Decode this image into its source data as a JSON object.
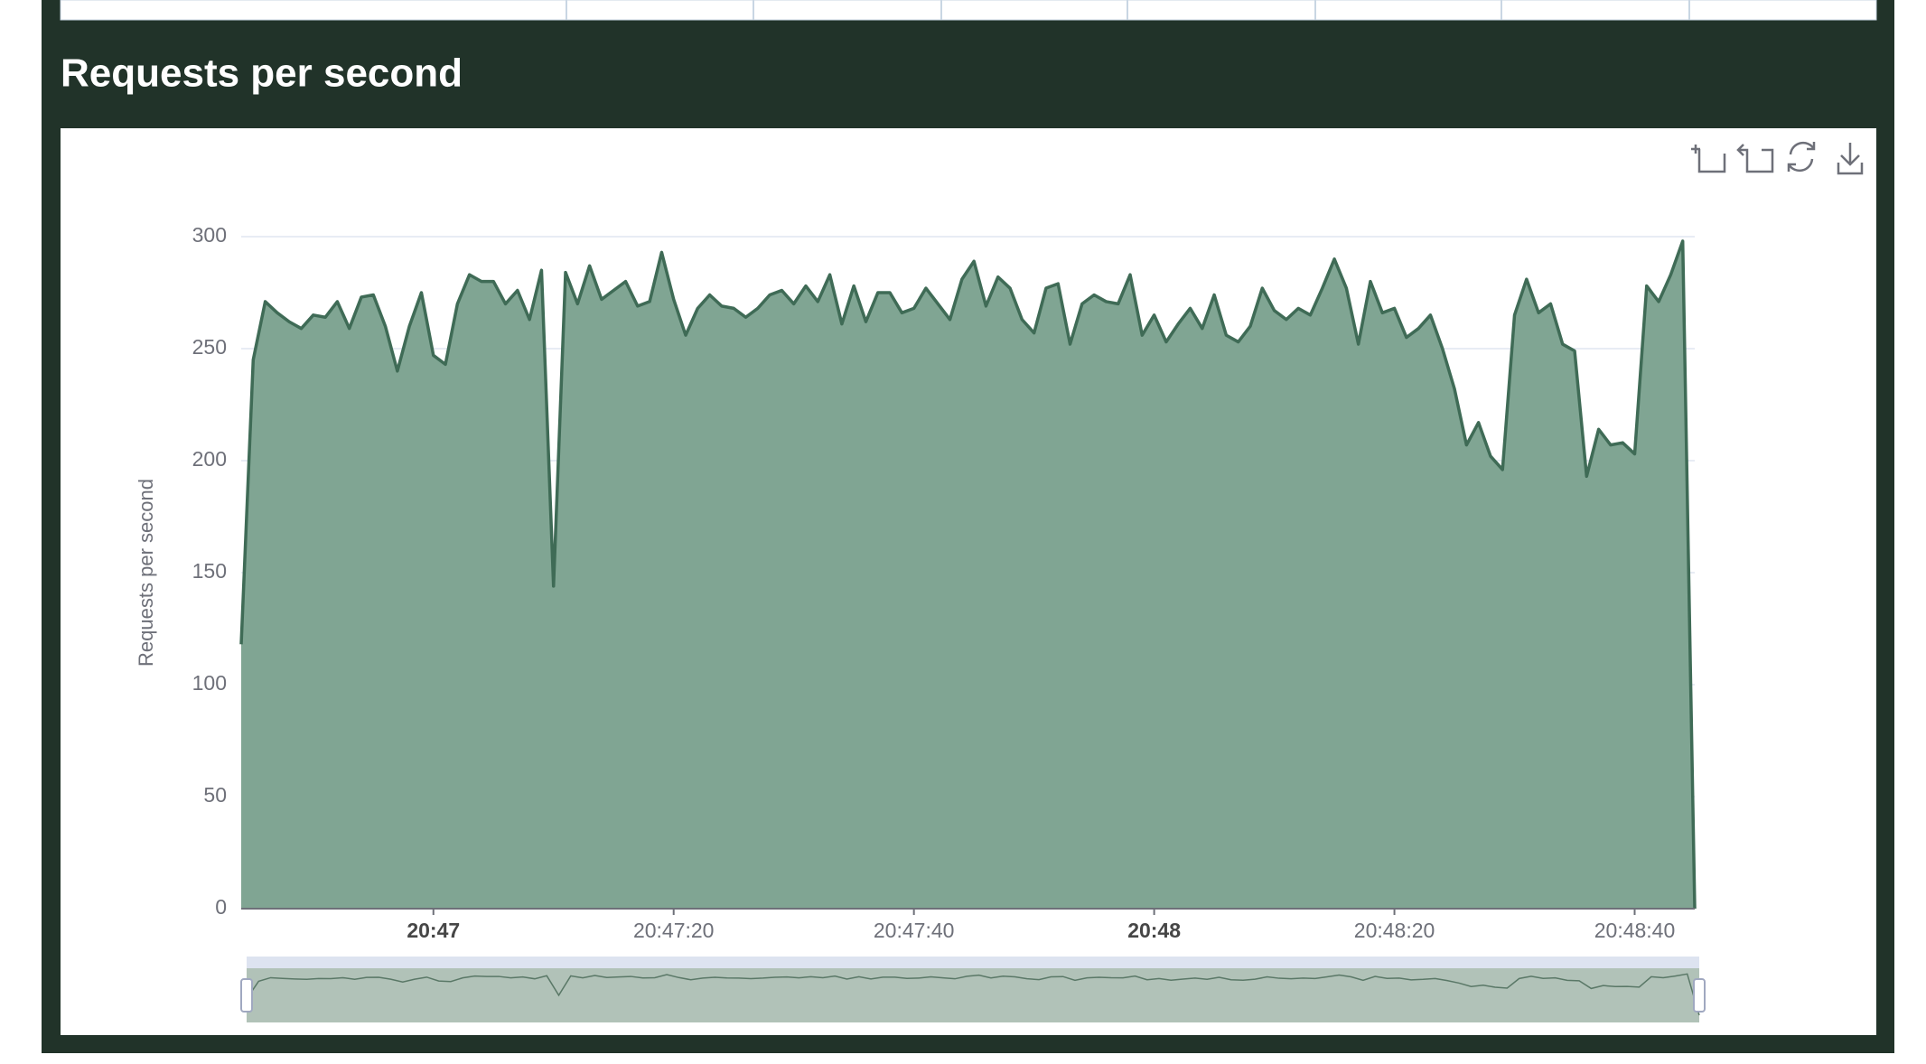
{
  "heading": "Requests per second",
  "chart_data": {
    "type": "area",
    "y_label": "Requests per second",
    "x": [
      "20:46:44",
      "20:46:45",
      "20:46:46",
      "20:46:47",
      "20:46:48",
      "20:46:49",
      "20:46:50",
      "20:46:51",
      "20:46:52",
      "20:46:53",
      "20:46:54",
      "20:46:55",
      "20:46:56",
      "20:46:57",
      "20:46:58",
      "20:46:59",
      "20:47:00",
      "20:47:01",
      "20:47:02",
      "20:47:03",
      "20:47:04",
      "20:47:05",
      "20:47:06",
      "20:47:07",
      "20:47:08",
      "20:47:09",
      "20:47:10",
      "20:47:11",
      "20:47:12",
      "20:47:13",
      "20:47:14",
      "20:47:15",
      "20:47:16",
      "20:47:17",
      "20:47:18",
      "20:47:19",
      "20:47:20",
      "20:47:21",
      "20:47:22",
      "20:47:23",
      "20:47:24",
      "20:47:25",
      "20:47:26",
      "20:47:27",
      "20:47:28",
      "20:47:29",
      "20:47:30",
      "20:47:31",
      "20:47:32",
      "20:47:33",
      "20:47:34",
      "20:47:35",
      "20:47:36",
      "20:47:37",
      "20:47:38",
      "20:47:39",
      "20:47:40",
      "20:47:41",
      "20:47:42",
      "20:47:43",
      "20:47:44",
      "20:47:45",
      "20:47:46",
      "20:47:47",
      "20:47:48",
      "20:47:49",
      "20:47:50",
      "20:47:51",
      "20:47:52",
      "20:47:53",
      "20:47:54",
      "20:47:55",
      "20:47:56",
      "20:47:57",
      "20:47:58",
      "20:47:59",
      "20:48:00",
      "20:48:01",
      "20:48:02",
      "20:48:03",
      "20:48:04",
      "20:48:05",
      "20:48:06",
      "20:48:07",
      "20:48:08",
      "20:48:09",
      "20:48:10",
      "20:48:11",
      "20:48:12",
      "20:48:13",
      "20:48:14",
      "20:48:15",
      "20:48:16",
      "20:48:17",
      "20:48:18",
      "20:48:19",
      "20:48:20",
      "20:48:21",
      "20:48:22",
      "20:48:23",
      "20:48:24",
      "20:48:25",
      "20:48:26",
      "20:48:27",
      "20:48:28",
      "20:48:29",
      "20:48:30",
      "20:48:31",
      "20:48:32",
      "20:48:33",
      "20:48:34",
      "20:48:35",
      "20:48:36",
      "20:48:37",
      "20:48:38",
      "20:48:39",
      "20:48:40",
      "20:48:41",
      "20:48:42",
      "20:48:43",
      "20:48:44",
      "20:48:45"
    ],
    "values": [
      118,
      245,
      271,
      266,
      262,
      259,
      265,
      264,
      271,
      259,
      273,
      274,
      260,
      240,
      260,
      275,
      247,
      243,
      270,
      283,
      280,
      280,
      270,
      276,
      263,
      285,
      144,
      284,
      270,
      287,
      272,
      276,
      280,
      269,
      271,
      293,
      272,
      256,
      268,
      274,
      269,
      268,
      264,
      268,
      274,
      276,
      270,
      278,
      271,
      283,
      261,
      278,
      262,
      275,
      275,
      266,
      268,
      277,
      270,
      263,
      281,
      289,
      269,
      282,
      277,
      263,
      257,
      277,
      279,
      252,
      270,
      274,
      271,
      270,
      283,
      256,
      265,
      253,
      261,
      268,
      259,
      274,
      256,
      253,
      260,
      277,
      267,
      263,
      268,
      265,
      277,
      290,
      277,
      252,
      280,
      266,
      268,
      255,
      259,
      265,
      250,
      232,
      207,
      217,
      202,
      196,
      265,
      281,
      266,
      270,
      252,
      249,
      193,
      214,
      207,
      208,
      203,
      278,
      271,
      283,
      298,
      0
    ],
    "color": "#3f6b56",
    "fill": "#80a593",
    "ylim": [
      0,
      300
    ],
    "yticks": [
      0,
      50,
      100,
      150,
      200,
      250,
      300
    ],
    "xticks": [
      {
        "value": "20:47:00",
        "label": "20:47"
      },
      {
        "value": "20:47:20",
        "label": "20:47:20"
      },
      {
        "value": "20:47:40",
        "label": "20:47:40"
      },
      {
        "value": "20:48:00",
        "label": "20:48"
      },
      {
        "value": "20:48:20",
        "label": "20:48:20"
      },
      {
        "value": "20:48:40",
        "label": "20:48:40"
      }
    ],
    "grid": true
  }
}
